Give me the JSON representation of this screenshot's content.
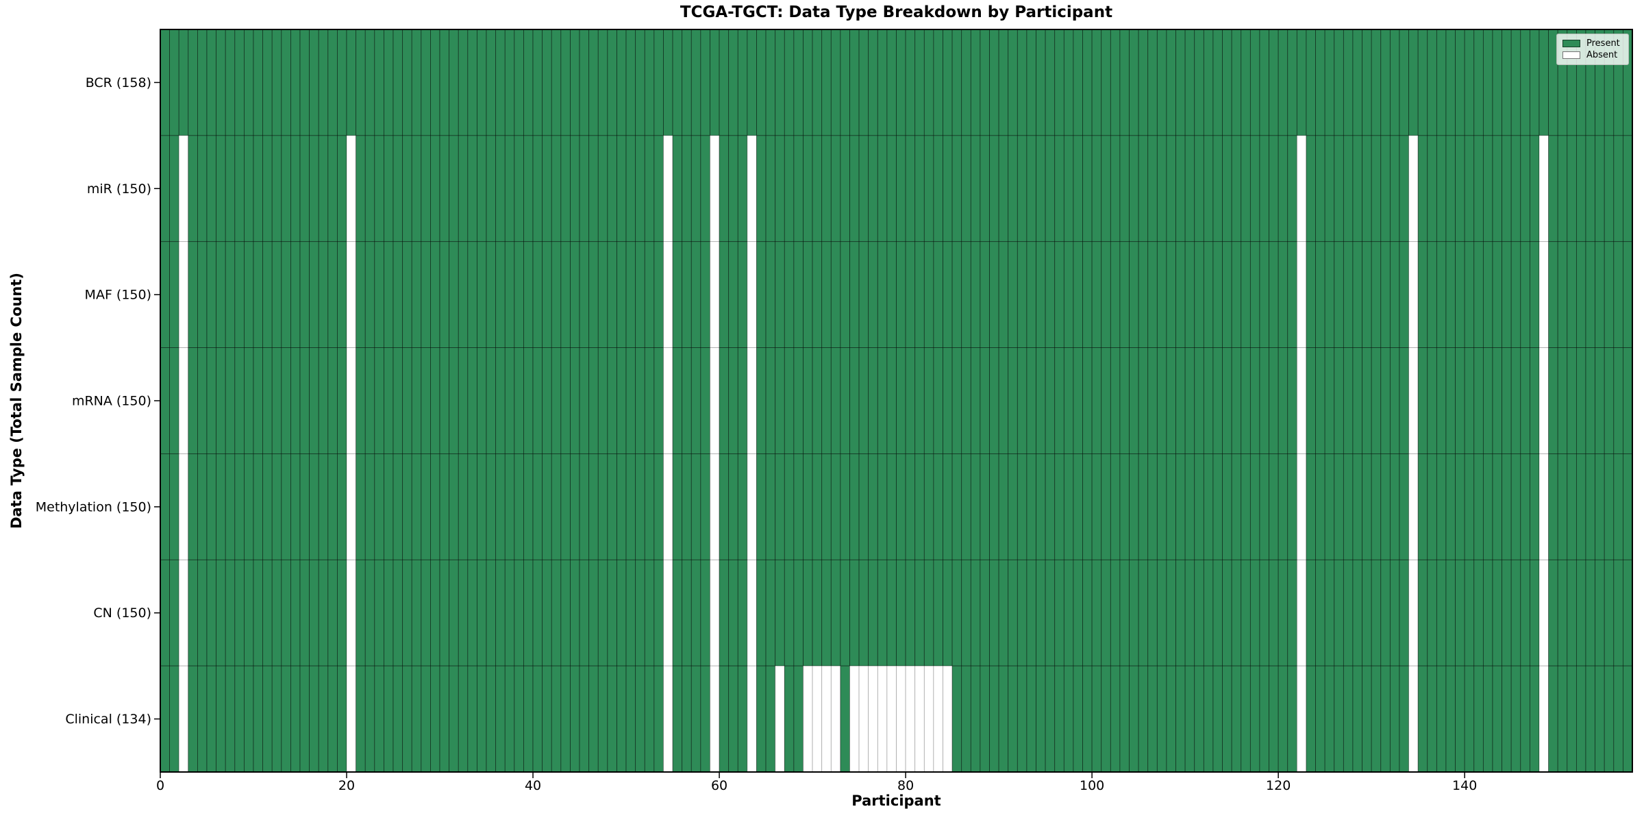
{
  "figure": {
    "title": "TCGA-TGCT: Data Type Breakdown by Participant",
    "xlabel": "Participant",
    "ylabel": "Data Type (Total Sample Count)"
  },
  "legend": {
    "items": [
      {
        "label": "Present",
        "color": "#2e8b57"
      },
      {
        "label": "Absent",
        "color": "#ffffff"
      }
    ]
  },
  "chart_data": {
    "type": "heatmap",
    "title": "TCGA-TGCT: Data Type Breakdown by Participant",
    "xlabel": "Participant",
    "ylabel": "Data Type (Total Sample Count)",
    "n_participants": 158,
    "xlim": [
      0,
      158
    ],
    "x_ticks": [
      0,
      20,
      40,
      60,
      80,
      100,
      120,
      140
    ],
    "present_color": "#2e8b57",
    "absent_color": "#ffffff",
    "legend_position": "upper right",
    "ytick_label_format": "{label} ({total})",
    "rows": [
      {
        "label": "BCR",
        "total": 158,
        "absent_participants": []
      },
      {
        "label": "miR",
        "total": 150,
        "absent_participants": [
          2,
          20,
          54,
          59,
          63,
          122,
          134,
          148
        ]
      },
      {
        "label": "MAF",
        "total": 150,
        "absent_participants": [
          2,
          20,
          54,
          59,
          63,
          122,
          134,
          148
        ]
      },
      {
        "label": "mRNA",
        "total": 150,
        "absent_participants": [
          2,
          20,
          54,
          59,
          63,
          122,
          134,
          148
        ]
      },
      {
        "label": "Methylation",
        "total": 150,
        "absent_participants": [
          2,
          20,
          54,
          59,
          63,
          122,
          134,
          148
        ]
      },
      {
        "label": "CN",
        "total": 150,
        "absent_participants": [
          2,
          20,
          54,
          59,
          63,
          122,
          134,
          148
        ]
      },
      {
        "label": "Clinical",
        "total": 134,
        "absent_participants": [
          2,
          20,
          54,
          59,
          63,
          66,
          69,
          70,
          71,
          72,
          74,
          75,
          76,
          77,
          78,
          79,
          80,
          81,
          82,
          83,
          84,
          122,
          134,
          148
        ]
      }
    ]
  }
}
